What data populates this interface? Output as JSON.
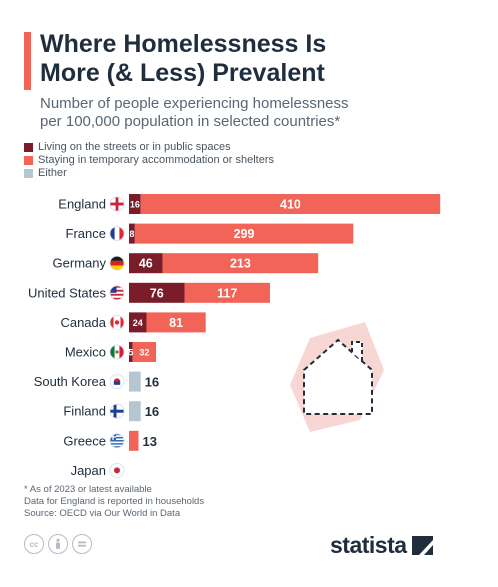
{
  "title_line1": "Where Homelessness Is",
  "title_line2": "More (& Less) Prevalent",
  "subtitle_line1": "Number of people experiencing homelessness",
  "subtitle_line2": "per 100,000 population in selected countries*",
  "legend": [
    {
      "label": "Living on the streets or in public spaces",
      "color": "#7a1c2a"
    },
    {
      "label": "Staying in temporary accommodation or shelters",
      "color": "#f26457"
    },
    {
      "label": "Either",
      "color": "#b6c6d1"
    }
  ],
  "footnote_line1": "* As of 2023 or latest available",
  "footnote_line2": "Data for England is reported in households",
  "footnote_line3": "Source: OECD via Our World in Data",
  "brand": "statista",
  "chart_data": {
    "type": "bar",
    "orientation": "horizontal",
    "stacked": true,
    "categories": [
      "England",
      "France",
      "Germany",
      "United States",
      "Canada",
      "Mexico",
      "South Korea",
      "Finland",
      "Greece",
      "Japan"
    ],
    "series": [
      {
        "name": "Living on the streets or in public spaces",
        "color": "#7a1c2a",
        "values": [
          16,
          8,
          46,
          76,
          24,
          5,
          null,
          null,
          null,
          null
        ]
      },
      {
        "name": "Staying in temporary accommodation or shelters",
        "color": "#f26457",
        "values": [
          410,
          299,
          213,
          117,
          81,
          32,
          null,
          null,
          13,
          null
        ]
      },
      {
        "name": "Either",
        "color": "#b6c6d1",
        "values": [
          null,
          null,
          null,
          null,
          null,
          null,
          16,
          16,
          null,
          null
        ]
      }
    ],
    "single_bar_label_series": [
      null,
      null,
      null,
      null,
      null,
      null,
      "Either",
      "Either",
      "Staying in temporary accommodation or shelters",
      "Living on the streets or in public spaces"
    ],
    "flag_icons": [
      "england-flag-icon",
      "france-flag-icon",
      "germany-flag-icon",
      "usa-flag-icon",
      "canada-flag-icon",
      "mexico-flag-icon",
      "south-korea-flag-icon",
      "finland-flag-icon",
      "greece-flag-icon",
      "japan-flag-icon"
    ],
    "grid": false,
    "legend_position": "top-left"
  }
}
